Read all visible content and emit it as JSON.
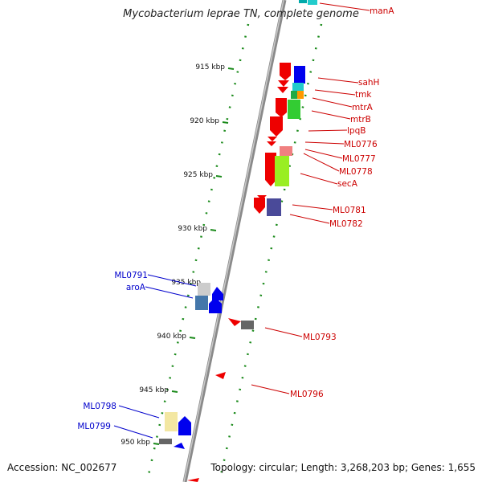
{
  "title": "Mycobacterium leprae TN, complete genome",
  "footer": {
    "accession": "Accession: NC_002677",
    "summary": "Topology: circular; Length: 3,268,203 bp; Genes: 1,655"
  },
  "colors": {
    "forward_label": "#cc0000",
    "reverse_label": "#0000cc",
    "backbone": "#888888",
    "ticks": "#1a8a1a"
  },
  "ticks": [
    {
      "label": "915 kbp"
    },
    {
      "label": "920 kbp"
    },
    {
      "label": "925 kbp"
    },
    {
      "label": "930 kbp"
    },
    {
      "label": "935 kbp"
    },
    {
      "label": "940 kbp"
    },
    {
      "label": "945 kbp"
    },
    {
      "label": "950 kbp"
    }
  ],
  "gene_labels_right": [
    {
      "name": "manA"
    },
    {
      "name": "sahH"
    },
    {
      "name": "tmk"
    },
    {
      "name": "mtrA"
    },
    {
      "name": "mtrB"
    },
    {
      "name": "lpqB"
    },
    {
      "name": "ML0776"
    },
    {
      "name": "ML0777"
    },
    {
      "name": "ML0778"
    },
    {
      "name": "secA"
    },
    {
      "name": "ML0781"
    },
    {
      "name": "ML0782"
    },
    {
      "name": "ML0793"
    },
    {
      "name": "ML0796"
    }
  ],
  "gene_labels_left": [
    {
      "name": "ML0791"
    },
    {
      "name": "aroA"
    },
    {
      "name": "ML0798"
    },
    {
      "name": "ML0799"
    }
  ]
}
